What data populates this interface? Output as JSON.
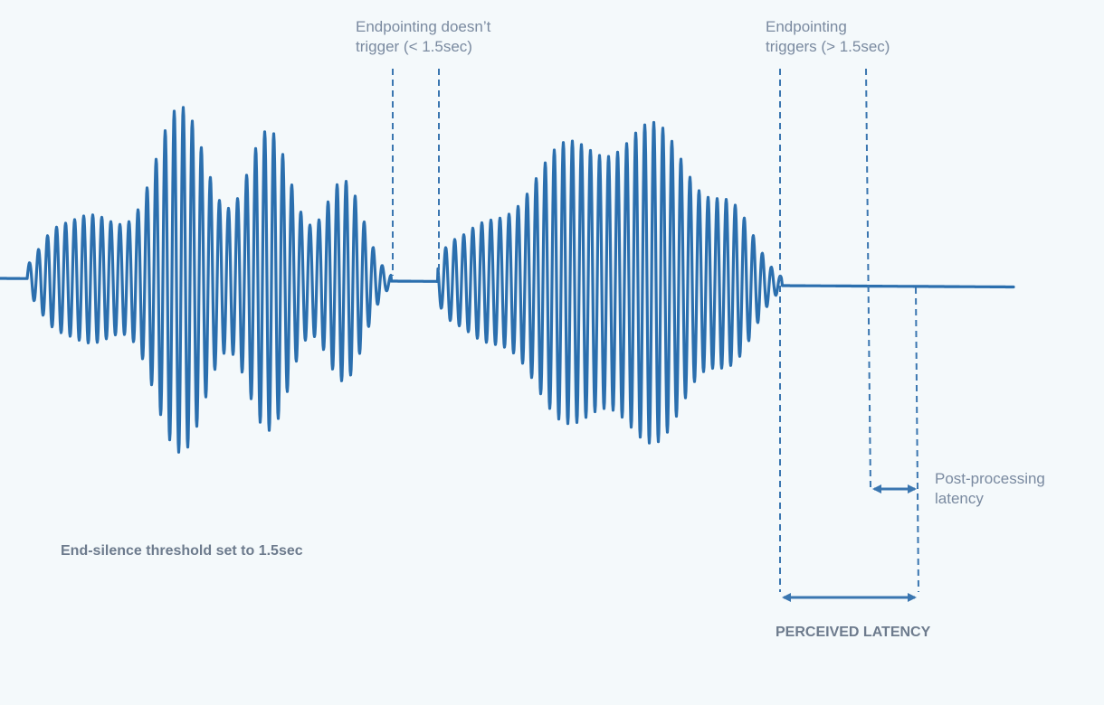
{
  "labels": {
    "no_trigger_line1": "Endpointing doesn’t",
    "no_trigger_line2": "trigger (< 1.5sec)",
    "trigger_line1": "Endpointing",
    "trigger_line2": "triggers (> 1.5sec)",
    "post_processing_line1": "Post-processing",
    "post_processing_line2": "latency",
    "threshold": "End-silence threshold set to 1.5sec",
    "perceived_latency": "PERCEIVED LATENCY"
  },
  "colors": {
    "waveform": "#2b6fae",
    "marker": "#3a76b0",
    "text": "#7a8aa0",
    "background": "#f4f9fb"
  },
  "icons": {
    "arrow_head": "arrow-head-icon"
  }
}
